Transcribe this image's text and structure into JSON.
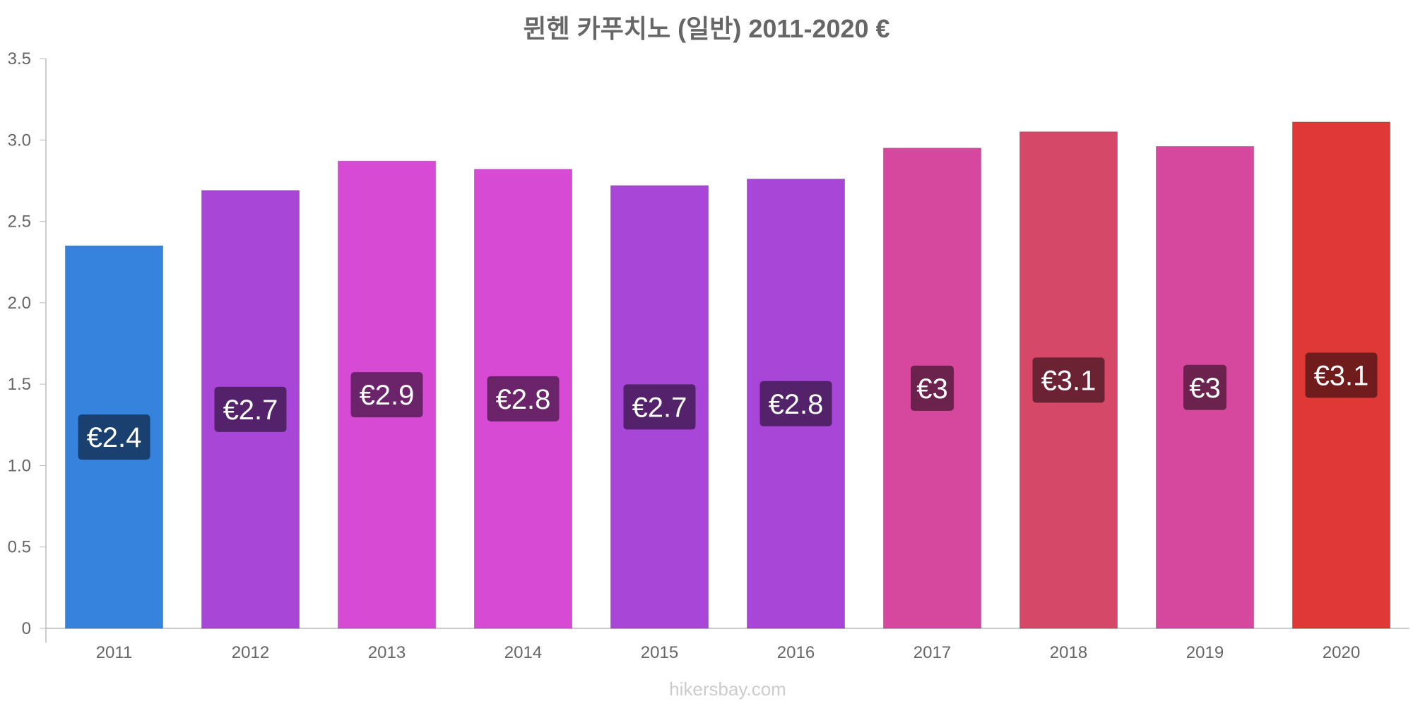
{
  "chart_data": {
    "type": "bar",
    "title": "뮌헨 카푸치노 (일반) 2011-2020 €",
    "categories": [
      "2011",
      "2012",
      "2013",
      "2014",
      "2015",
      "2016",
      "2017",
      "2018",
      "2019",
      "2020"
    ],
    "values": [
      2.35,
      2.69,
      2.87,
      2.82,
      2.72,
      2.76,
      2.95,
      3.05,
      2.96,
      3.11
    ],
    "data_labels": [
      "€2.4",
      "€2.7",
      "€2.9",
      "€2.8",
      "€2.7",
      "€2.8",
      "€3",
      "€3.1",
      "€3",
      "€3.1"
    ],
    "bar_colors": [
      "#3683de",
      "#a846d8",
      "#d74ad4",
      "#d74ad4",
      "#a846d8",
      "#a846d8",
      "#d6489d",
      "#d64868",
      "#d6489d",
      "#e03737"
    ],
    "label_bg_colors": [
      "#1a4070",
      "#54226b",
      "#6b246a",
      "#6b246a",
      "#54226b",
      "#54226b",
      "#6b234d",
      "#6b2334",
      "#6b234d",
      "#701c1c"
    ],
    "ylim": [
      0,
      3.5
    ],
    "yticks": [
      "0",
      "0.5",
      "1.0",
      "1.5",
      "2.0",
      "2.5",
      "3.0",
      "3.5"
    ],
    "xlabel": "",
    "ylabel": "",
    "grid": false,
    "legend": "none"
  },
  "watermark": "hikersbay.com"
}
